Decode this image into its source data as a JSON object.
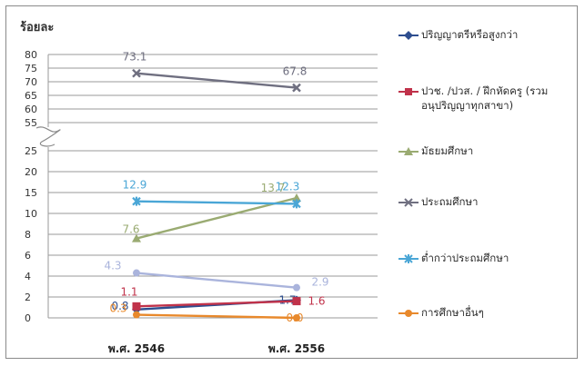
{
  "chart_data": {
    "type": "line",
    "title": "",
    "ylabel": "ร้อยละ",
    "xlabel": "",
    "categories": [
      "พ.ศ. 2546",
      "พ.ศ. 2556"
    ],
    "y_axis_lower": {
      "range": [
        0,
        25
      ],
      "ticks": [
        "0",
        "2",
        "4",
        "6",
        "8",
        "10",
        "15",
        "20",
        "25"
      ]
    },
    "y_axis_upper": {
      "range": [
        55,
        80
      ],
      "ticks": [
        "55",
        "60",
        "65",
        "70",
        "75",
        "80"
      ]
    },
    "axis_break": "between 25 and 55",
    "grid": true,
    "legend_position": "right",
    "series": [
      {
        "name": "ปริญญาตรีหรือสูงกว่า",
        "values": [
          0.8,
          1.7
        ],
        "labels": [
          "0.8",
          "1.7"
        ],
        "color": "#2e4e8f",
        "marker": "diamond"
      },
      {
        "name": "ปวช. /ปวส. / ฝึกหัดครู (รวมอนุปริญญาทุกสาขา)",
        "values": [
          1.1,
          1.6
        ],
        "labels": [
          "1.1",
          "1.6"
        ],
        "color": "#c0324a",
        "marker": "square"
      },
      {
        "name": "มัธยมศึกษา",
        "values": [
          7.6,
          13.7
        ],
        "labels": [
          "7.6",
          "13.7"
        ],
        "color": "#9aab72",
        "marker": "triangle"
      },
      {
        "name": "ประถมศึกษา",
        "values": [
          73.1,
          67.8
        ],
        "labels": [
          "73.1",
          "67.8"
        ],
        "color": "#6f6f80",
        "marker": "x"
      },
      {
        "name": "ต่ำกว่าประถมศึกษา",
        "values": [
          12.9,
          12.3
        ],
        "labels": [
          "12.9",
          "12.3"
        ],
        "color": "#4aa6d6",
        "marker": "asterisk"
      },
      {
        "name": "การศึกษาอื่นๆ",
        "values": [
          0.3,
          0.0
        ],
        "labels": [
          "0.3",
          "0.0"
        ],
        "color": "#e8892c",
        "marker": "circle"
      }
    ],
    "extra_series": [
      {
        "values": [
          4.3,
          2.9
        ],
        "labels": [
          "4.3",
          "2.9"
        ],
        "color": "#aab4dc",
        "marker": "circle"
      }
    ]
  }
}
